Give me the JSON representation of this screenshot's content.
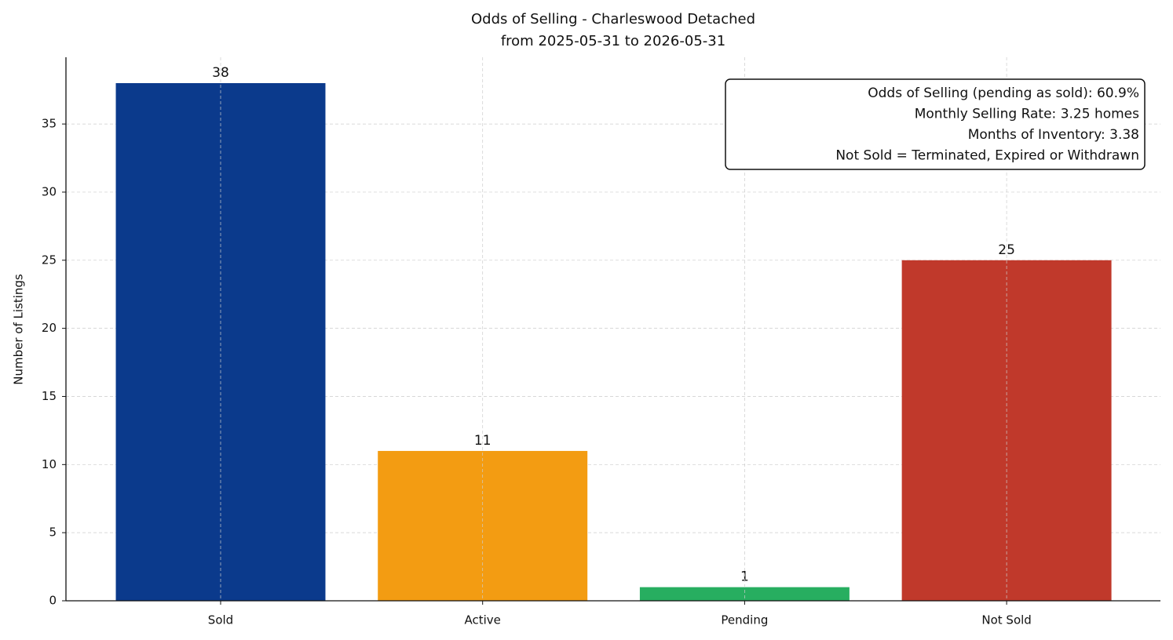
{
  "chart_data": {
    "type": "bar",
    "title": "Odds of Selling - Charleswood Detached",
    "subtitle": "from 2025-05-31 to 2026-05-31",
    "y_label": "Number of Listings",
    "categories": [
      "Sold",
      "Active",
      "Pending",
      "Not Sold"
    ],
    "values": [
      38,
      11,
      1,
      25
    ],
    "colors": [
      "#0b3a8c",
      "#f39c12",
      "#27ae60",
      "#c0392b"
    ],
    "ylim": [
      0,
      39.9
    ],
    "yticks": [
      0,
      5,
      10,
      15,
      20,
      25,
      30,
      35
    ],
    "grid": true,
    "annotation": [
      "Odds of Selling (pending as sold): 60.9%",
      "Monthly Selling Rate: 3.25 homes",
      "Months of Inventory: 3.38",
      "Not Sold = Terminated, Expired or Withdrawn"
    ],
    "annotation_corner": "upper right"
  }
}
